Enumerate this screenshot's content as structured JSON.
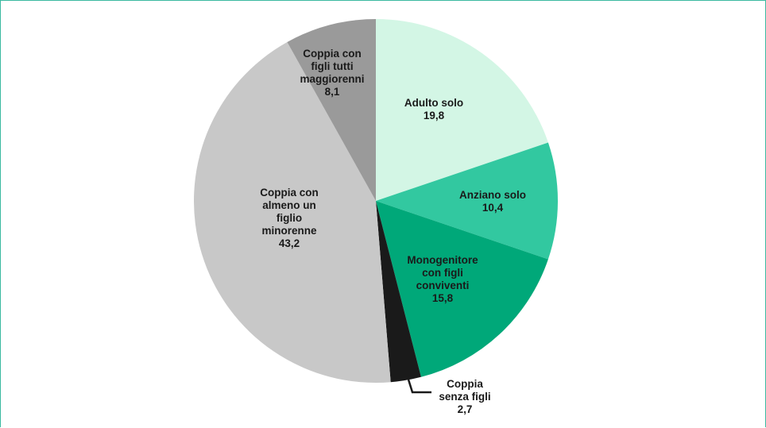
{
  "chart_data": {
    "type": "pie",
    "categories": [
      "Adulto solo",
      "Anziano solo",
      "Monogenitore con figli conviventi",
      "Coppia senza figli",
      "Coppia con almeno un figlio minorenne",
      "Coppia con figli tutti maggiorenni"
    ],
    "values": [
      19.8,
      10.4,
      15.8,
      2.7,
      43.2,
      8.1
    ],
    "value_labels": [
      "19,8",
      "10,4",
      "15,8",
      "2,7",
      "43,2",
      "8,1"
    ],
    "colors": [
      "#d3f6e5",
      "#32c8a0",
      "#00a879",
      "#1a1a1a",
      "#c8c8c8",
      "#9a9a9a"
    ]
  }
}
